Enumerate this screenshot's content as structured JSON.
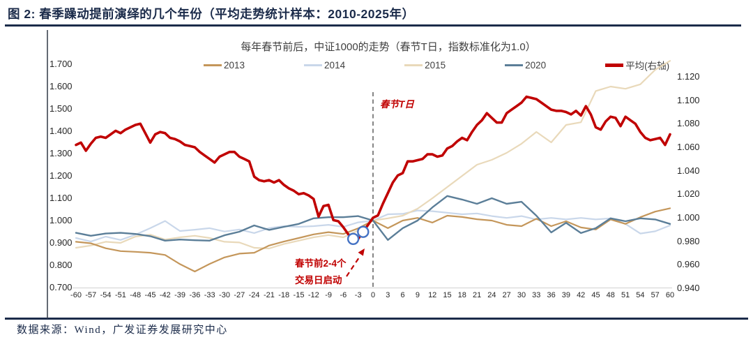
{
  "header": {
    "title": "图 2: 春季躁动提前演绎的几个年份（平均走势统计样本：2010-2025年）"
  },
  "chart": {
    "subtitle": "每年春节前后，中证1000的走势（春节T日，指数标准化为1.0）",
    "annotations": {
      "t_day_label": "春节T日",
      "launch_label_line1": "春节前2-4个",
      "launch_label_line2": "交易日启动"
    },
    "colors": {
      "title_navy": "#1B2B4A",
      "axis_text": "#262626",
      "reference_dash": "#7F7F7F",
      "baseline_grey": "#D9D9D9",
      "highlight_circle_blue": "#4472C4",
      "annotation_red": "#C00000"
    }
  },
  "chart_data": {
    "type": "line",
    "title": "每年春节前后，中证1000的走势（春节T日，指数标准化为1.0）",
    "x_axis": {
      "range": [
        -60,
        60
      ],
      "ticks": [
        -60,
        -57,
        -54,
        -51,
        -48,
        -45,
        -42,
        -39,
        -36,
        -33,
        -30,
        -27,
        -24,
        -21,
        -18,
        -15,
        -12,
        -9,
        -6,
        -3,
        0,
        3,
        6,
        9,
        12,
        15,
        18,
        21,
        24,
        27,
        30,
        33,
        36,
        39,
        42,
        45,
        48,
        51,
        54,
        57,
        60
      ]
    },
    "left_axis": {
      "range": [
        0.7,
        1.7
      ],
      "tick_labels": [
        "0.700",
        "0.800",
        "0.900",
        "1.000",
        "1.100",
        "1.200",
        "1.300",
        "1.400",
        "1.500",
        "1.600",
        "1.700"
      ]
    },
    "right_axis": {
      "range": [
        0.94,
        1.12
      ],
      "tick_labels": [
        "0.940",
        "0.960",
        "0.980",
        "1.000",
        "1.020",
        "1.040",
        "1.060",
        "1.080",
        "1.100",
        "1.120"
      ]
    },
    "reference_line_x": 0,
    "highlight_points_x": [
      -4,
      -2
    ],
    "legend_position": "top",
    "grid": false,
    "series": [
      {
        "name": "2013",
        "axis": "left",
        "color": "#C4965A",
        "x_start": -60,
        "x_step": 3,
        "width": 2.2,
        "values": [
          0.905,
          0.898,
          0.876,
          0.863,
          0.86,
          0.856,
          0.846,
          0.805,
          0.772,
          0.806,
          0.835,
          0.852,
          0.856,
          0.888,
          0.906,
          0.922,
          0.938,
          0.948,
          0.94,
          0.965,
          1.0,
          0.966,
          1.0,
          1.012,
          0.991,
          1.022,
          1.016,
          1.006,
          1.0,
          0.981,
          0.975,
          1.008,
          0.975,
          0.997,
          0.969,
          0.96,
          1.005,
          0.985,
          1.015,
          1.04,
          1.055
        ]
      },
      {
        "name": "2014",
        "axis": "left",
        "color": "#C9D7EA",
        "x_start": -60,
        "x_step": 3,
        "width": 2.2,
        "values": [
          0.922,
          0.906,
          0.928,
          0.913,
          0.937,
          0.966,
          0.998,
          0.953,
          0.959,
          0.966,
          0.951,
          0.96,
          0.944,
          0.966,
          0.975,
          0.972,
          0.975,
          0.981,
          0.972,
          0.992,
          1.0,
          1.028,
          1.03,
          1.045,
          1.042,
          1.035,
          1.028,
          1.032,
          1.02,
          1.012,
          1.02,
          1.005,
          1.012,
          1.005,
          1.012,
          1.005,
          1.01,
          0.985,
          0.942,
          0.952,
          0.978
        ]
      },
      {
        "name": "2015",
        "axis": "left",
        "color": "#E9D9BA",
        "x_start": -60,
        "x_step": 3,
        "width": 2.2,
        "values": [
          0.878,
          0.888,
          0.905,
          0.9,
          0.928,
          0.937,
          0.915,
          0.925,
          0.932,
          0.922,
          0.905,
          0.902,
          0.878,
          0.875,
          0.895,
          0.91,
          0.925,
          0.935,
          0.925,
          0.955,
          1.0,
          1.01,
          1.022,
          1.053,
          1.1,
          1.15,
          1.2,
          1.25,
          1.272,
          1.303,
          1.344,
          1.397,
          1.35,
          1.428,
          1.44,
          1.58,
          1.6,
          1.59,
          1.61,
          1.675,
          1.715
        ]
      },
      {
        "name": "2020",
        "axis": "left",
        "color": "#5B7E98",
        "x_start": -60,
        "x_step": 3,
        "width": 2.4,
        "values": [
          0.945,
          0.932,
          0.942,
          0.945,
          0.94,
          0.93,
          0.91,
          0.915,
          0.912,
          0.91,
          0.934,
          0.95,
          0.978,
          0.958,
          0.972,
          0.985,
          1.01,
          1.015,
          1.015,
          1.02,
          1.0,
          0.913,
          0.966,
          1.0,
          1.059,
          1.11,
          1.094,
          1.075,
          1.1,
          1.075,
          1.084,
          1.022,
          0.947,
          0.99,
          0.944,
          0.966,
          1.01,
          0.997,
          1.01,
          1.005,
          0.985
        ]
      },
      {
        "name": "平均(右轴)",
        "axis": "right",
        "color": "#C00000",
        "x_start": -60,
        "x_step": 1,
        "width": 3.6,
        "emphasis": true,
        "values": [
          1.062,
          1.064,
          1.057,
          1.063,
          1.068,
          1.069,
          1.068,
          1.071,
          1.074,
          1.072,
          1.075,
          1.077,
          1.079,
          1.08,
          1.072,
          1.064,
          1.071,
          1.073,
          1.072,
          1.068,
          1.067,
          1.065,
          1.062,
          1.061,
          1.06,
          1.056,
          1.053,
          1.05,
          1.047,
          1.052,
          1.054,
          1.056,
          1.056,
          1.052,
          1.05,
          1.048,
          1.035,
          1.032,
          1.031,
          1.032,
          1.03,
          1.032,
          1.028,
          1.025,
          1.023,
          1.02,
          1.021,
          1.019,
          1.016,
          1.001,
          1.01,
          1.011,
          0.998,
          0.997,
          0.992,
          0.986,
          0.982,
          0.982,
          0.988,
          0.994,
          1.0,
          1.002,
          1.012,
          1.021,
          1.03,
          1.036,
          1.038,
          1.048,
          1.048,
          1.049,
          1.05,
          1.054,
          1.054,
          1.052,
          1.053,
          1.059,
          1.061,
          1.065,
          1.068,
          1.066,
          1.073,
          1.079,
          1.083,
          1.089,
          1.085,
          1.081,
          1.081,
          1.089,
          1.092,
          1.095,
          1.098,
          1.103,
          1.102,
          1.101,
          1.098,
          1.095,
          1.092,
          1.091,
          1.091,
          1.09,
          1.088,
          1.091,
          1.087,
          1.095,
          1.088,
          1.077,
          1.075,
          1.082,
          1.086,
          1.085,
          1.078,
          1.086,
          1.083,
          1.08,
          1.073,
          1.068,
          1.066,
          1.067,
          1.068,
          1.062,
          1.071
        ]
      }
    ]
  },
  "footer": {
    "source": "数据来源：Wind，广发证券发展研究中心"
  }
}
